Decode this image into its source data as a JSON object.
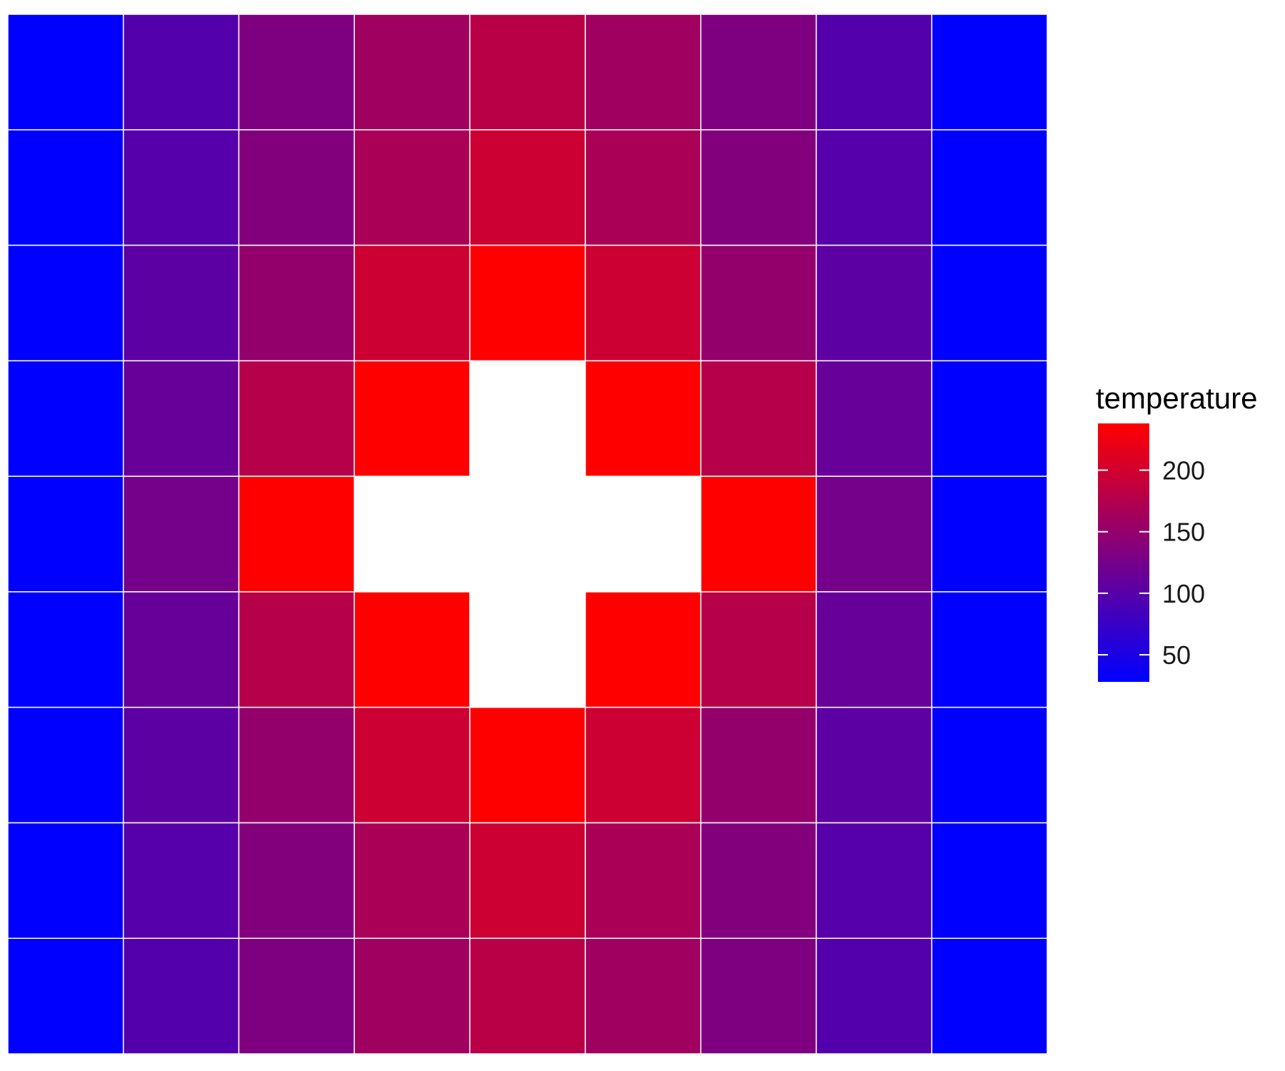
{
  "chart_data": {
    "type": "heatmap",
    "title": "",
    "xlabel": "",
    "ylabel": "",
    "grid": false,
    "colorscale": {
      "low": "#0000FF",
      "high": "#FF0000",
      "range": [
        28,
        238
      ]
    },
    "legend": {
      "title": "temperature",
      "position": "right",
      "ticks": [
        50,
        100,
        150,
        200
      ]
    },
    "rows": 9,
    "cols": 9,
    "values": [
      [
        28,
        96,
        132,
        160,
        180,
        160,
        132,
        96,
        28
      ],
      [
        28,
        98,
        136,
        168,
        196,
        168,
        136,
        98,
        28
      ],
      [
        28,
        104,
        150,
        196,
        238,
        196,
        150,
        104,
        28
      ],
      [
        28,
        112,
        178,
        238,
        null,
        238,
        178,
        112,
        28
      ],
      [
        28,
        124,
        238,
        null,
        null,
        null,
        238,
        124,
        28
      ],
      [
        28,
        112,
        178,
        238,
        null,
        238,
        178,
        112,
        28
      ],
      [
        28,
        104,
        150,
        196,
        238,
        196,
        150,
        104,
        28
      ],
      [
        28,
        98,
        136,
        168,
        196,
        168,
        136,
        98,
        28
      ],
      [
        28,
        96,
        132,
        160,
        180,
        160,
        132,
        96,
        28
      ]
    ]
  }
}
